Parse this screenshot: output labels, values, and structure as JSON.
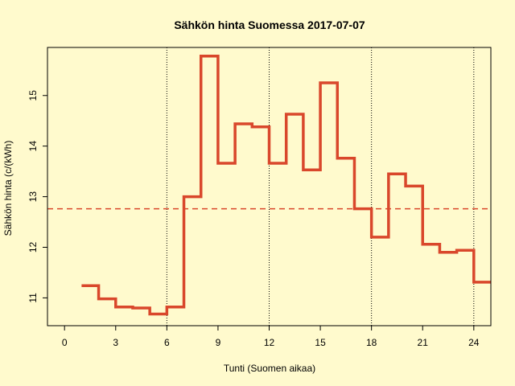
{
  "chart_data": {
    "type": "line",
    "step": true,
    "title": "Sähkön hinta Suomessa 2017-07-07",
    "xlabel": "Tunti (Suomen aikaa)",
    "ylabel": "Sähkön hinta (c/(kWh)",
    "xlim": [
      -1,
      25
    ],
    "ylim": [
      10.45,
      15.95
    ],
    "x_ticks": [
      0,
      3,
      6,
      9,
      12,
      15,
      18,
      21,
      24
    ],
    "y_ticks": [
      11,
      12,
      13,
      14,
      15
    ],
    "vertical_lines_at": [
      6,
      12,
      18,
      24
    ],
    "series": [
      {
        "color": "#d9472b",
        "x": [
          1,
          2,
          3,
          4,
          5,
          6,
          7,
          8,
          9,
          10,
          11,
          12,
          13,
          14,
          15,
          16,
          17,
          18,
          19,
          20,
          21,
          22,
          23,
          24,
          25
        ],
        "values": [
          11.24,
          10.98,
          10.82,
          10.8,
          10.68,
          10.82,
          13.0,
          15.78,
          13.66,
          14.44,
          14.38,
          13.66,
          14.63,
          13.53,
          15.25,
          13.76,
          12.76,
          12.2,
          13.45,
          13.21,
          12.06,
          11.9,
          11.94,
          11.31,
          11.31
        ]
      }
    ],
    "reference_lines": [
      {
        "y": 12.76,
        "style": "dashed",
        "color": "#d9472b"
      }
    ],
    "grid": false
  }
}
